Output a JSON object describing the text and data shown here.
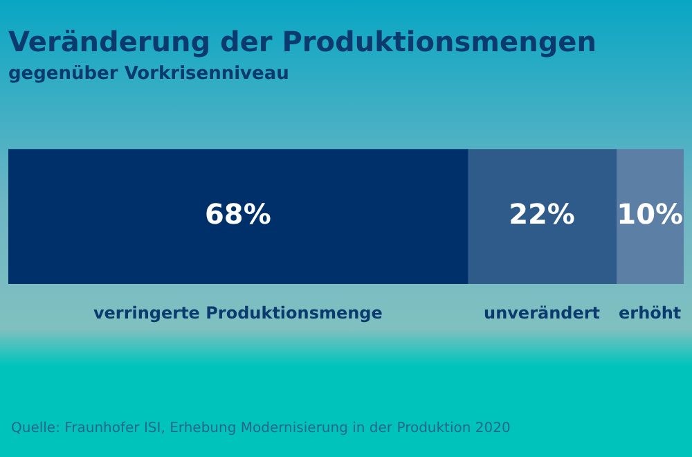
{
  "chart_data": {
    "type": "bar",
    "orientation": "horizontal",
    "stacked": true,
    "title": "Veränderung der Produktionsmengen",
    "subtitle": "gegenüber Vorkrisenniveau",
    "categories": [
      null
    ],
    "legend": false,
    "series": [
      {
        "name": "verringerte Produktionsmenge",
        "color": "#00306a",
        "values": [
          68
        ],
        "value_labels": [
          "68%"
        ]
      },
      {
        "name": "unverändert",
        "color": "#2f5b8a",
        "values": [
          22
        ],
        "value_labels": [
          "22%"
        ]
      },
      {
        "name": "erhöht",
        "color": "#5c7fa6",
        "values": [
          10
        ],
        "value_labels": [
          "10%"
        ]
      }
    ],
    "annotations": [
      "Quelle: Fraunhofer ISI, Erhebung Modernisierung in der Produktion 2020"
    ]
  }
}
